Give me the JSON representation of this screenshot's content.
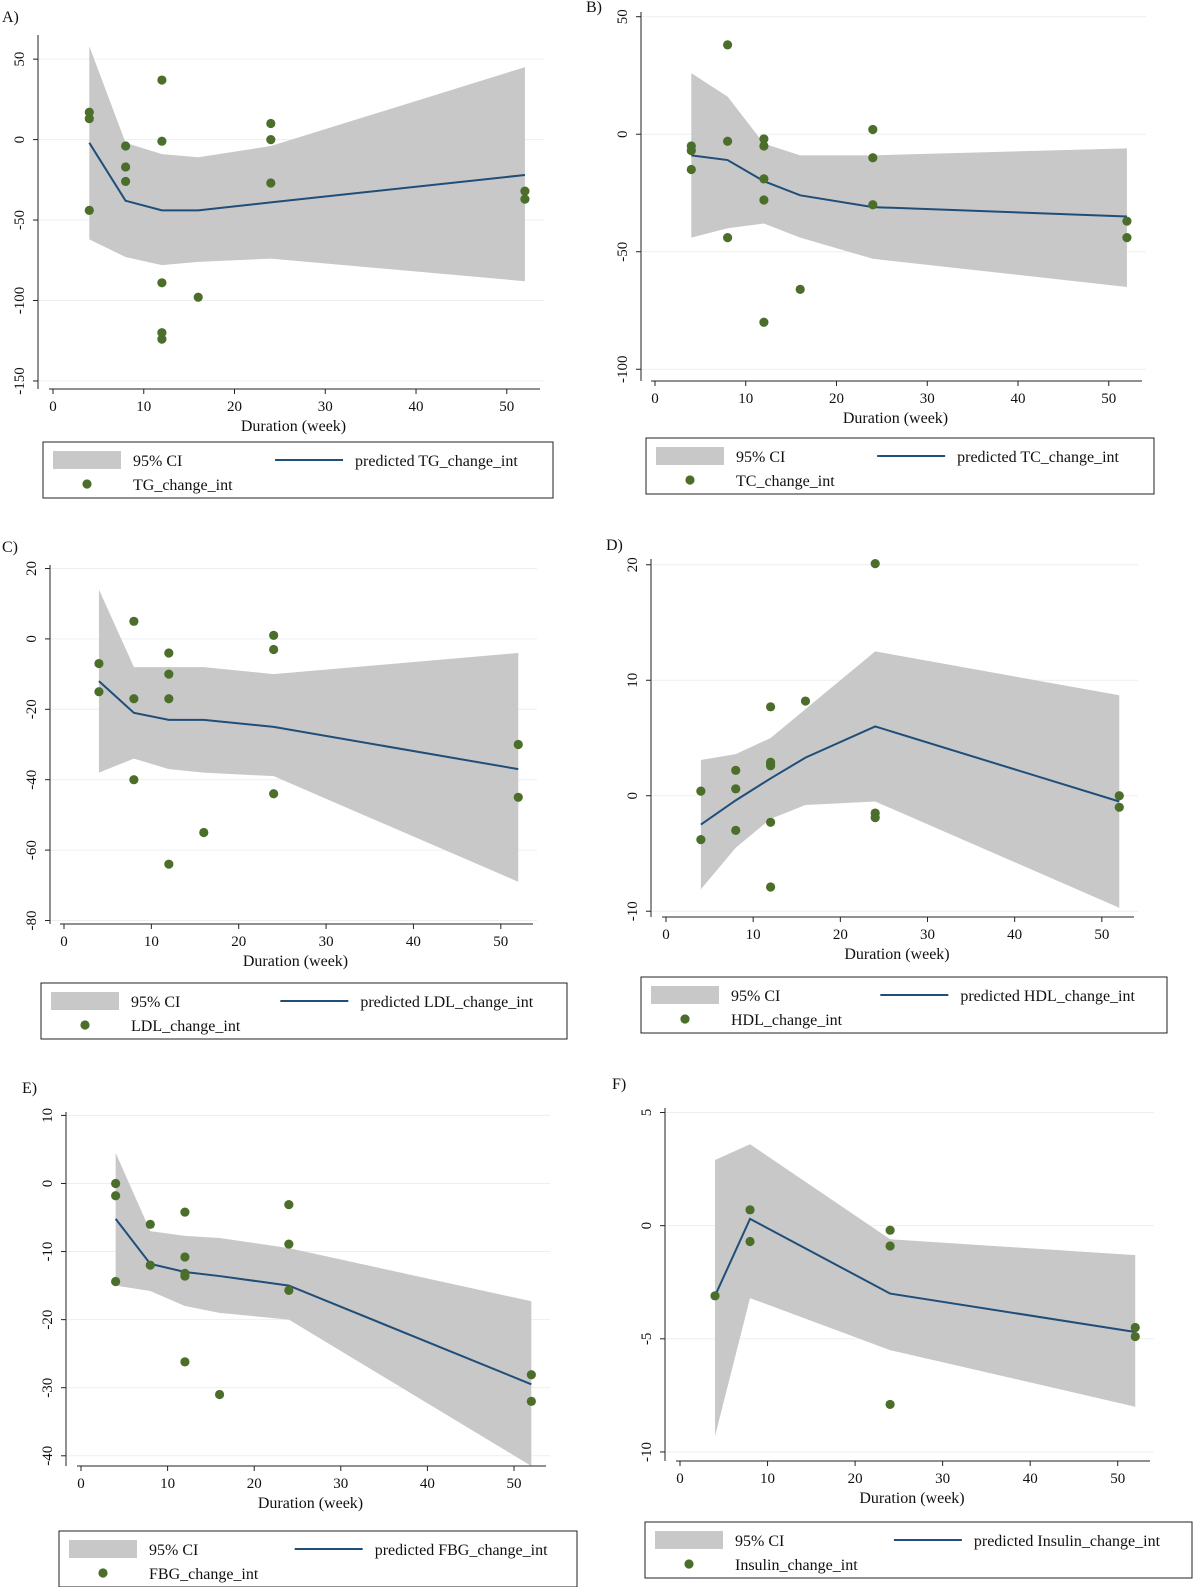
{
  "colors": {
    "band": "#c8c8c8",
    "fit_line": "#1f4e79",
    "points": "#4b6f2a",
    "grid": "#eceff2"
  },
  "chart_data": [
    {
      "panel": "A)",
      "type": "line",
      "xlabel": "Duration (week)",
      "xlim": [
        0,
        53
      ],
      "xticks": [
        0,
        10,
        20,
        30,
        40,
        50
      ],
      "ylim": [
        -155,
        65
      ],
      "yticks": [
        50,
        0,
        -50,
        -100,
        -150
      ],
      "grid": true,
      "legend": {
        "placement": "bottom",
        "ci_label": "95% CI",
        "fit_label": "predicted TG_change_int",
        "points_label": "TG_change_int"
      },
      "ci": {
        "x": [
          4,
          8,
          12,
          16,
          24,
          52
        ],
        "upper": [
          58,
          -2,
          -9,
          -11,
          -4,
          45
        ],
        "lower": [
          -62,
          -73,
          -78,
          -76,
          -74,
          -88
        ]
      },
      "fit": {
        "x": [
          4,
          8,
          12,
          16,
          24,
          52
        ],
        "y": [
          -2,
          -38,
          -44,
          -44,
          -39,
          -22
        ]
      },
      "points": {
        "x": [
          4,
          4,
          4,
          8,
          8,
          8,
          12,
          12,
          12,
          12,
          12,
          16,
          24,
          24,
          24,
          52,
          52
        ],
        "y": [
          17,
          13,
          -44,
          -4,
          -17,
          -26,
          37,
          -1,
          -89,
          -120,
          -124,
          -98,
          10,
          0,
          -27,
          -32,
          -37
        ]
      }
    },
    {
      "panel": "B)",
      "type": "line",
      "xlabel": "Duration (week)",
      "xlim": [
        0,
        53
      ],
      "xticks": [
        0,
        10,
        20,
        30,
        40,
        50
      ],
      "ylim": [
        -105,
        52
      ],
      "yticks": [
        50,
        0,
        -50,
        -100
      ],
      "grid": true,
      "legend": {
        "placement": "bottom",
        "ci_label": "95% CI",
        "fit_label": "predicted TC_change_int",
        "points_label": "TC_change_int"
      },
      "ci": {
        "x": [
          4,
          8,
          12,
          16,
          24,
          52
        ],
        "upper": [
          26,
          16,
          -4,
          -9,
          -9,
          -6
        ],
        "lower": [
          -44,
          -40,
          -38,
          -44,
          -53,
          -65
        ]
      },
      "fit": {
        "x": [
          4,
          8,
          12,
          16,
          24,
          52
        ],
        "y": [
          -9,
          -11,
          -20,
          -26,
          -31,
          -35
        ]
      },
      "points": {
        "x": [
          4,
          4,
          4,
          8,
          8,
          8,
          12,
          12,
          12,
          12,
          12,
          16,
          24,
          24,
          24,
          52,
          52
        ],
        "y": [
          -5,
          -7,
          -15,
          38,
          -3,
          -44,
          -2,
          -5,
          -19,
          -28,
          -80,
          -66,
          2,
          -10,
          -30,
          -37,
          -44
        ]
      }
    },
    {
      "panel": "C)",
      "type": "line",
      "xlabel": "Duration (week)",
      "xlim": [
        0,
        53
      ],
      "xticks": [
        0,
        10,
        20,
        30,
        40,
        50
      ],
      "ylim": [
        -81,
        21
      ],
      "yticks": [
        20,
        0,
        -20,
        -40,
        -60,
        -80
      ],
      "grid": true,
      "legend": {
        "placement": "bottom",
        "ci_label": "95% CI",
        "fit_label": "predicted LDL_change_int",
        "points_label": "LDL_change_int"
      },
      "ci": {
        "x": [
          4,
          8,
          12,
          16,
          24,
          52
        ],
        "upper": [
          14,
          -8,
          -8,
          -8,
          -10,
          -4
        ],
        "lower": [
          -38,
          -34,
          -37,
          -38,
          -39,
          -69
        ]
      },
      "fit": {
        "x": [
          4,
          8,
          12,
          16,
          24,
          52
        ],
        "y": [
          -12,
          -21,
          -23,
          -23,
          -25,
          -37
        ]
      },
      "points": {
        "x": [
          4,
          4,
          8,
          8,
          8,
          12,
          12,
          12,
          12,
          16,
          24,
          24,
          24,
          52,
          52
        ],
        "y": [
          -7,
          -15,
          5,
          -17,
          -40,
          -4,
          -10,
          -17,
          -64,
          -55,
          1,
          -3,
          -44,
          -30,
          -45
        ]
      }
    },
    {
      "panel": "D)",
      "type": "line",
      "xlabel": "Duration (week)",
      "xlim": [
        0,
        53
      ],
      "xticks": [
        0,
        10,
        20,
        30,
        40,
        50
      ],
      "ylim": [
        -10.5,
        20.5
      ],
      "yticks": [
        20,
        10,
        0,
        -10
      ],
      "grid": true,
      "legend": {
        "placement": "bottom",
        "ci_label": "95% CI",
        "fit_label": "predicted HDL_change_int",
        "points_label": "HDL_change_int"
      },
      "ci": {
        "x": [
          4,
          8,
          12,
          16,
          24,
          52
        ],
        "upper": [
          3.1,
          3.6,
          5.0,
          7.5,
          12.5,
          8.7
        ],
        "lower": [
          -8.1,
          -4.5,
          -2.0,
          -0.8,
          -0.5,
          -9.7
        ]
      },
      "fit": {
        "x": [
          4,
          8,
          12,
          16,
          24,
          52
        ],
        "y": [
          -2.5,
          -0.4,
          1.5,
          3.3,
          6.0,
          -0.5
        ]
      },
      "points": {
        "x": [
          4,
          4,
          8,
          8,
          8,
          12,
          12,
          12,
          12,
          12,
          12,
          16,
          24,
          24,
          24,
          52,
          52
        ],
        "y": [
          0.4,
          -3.8,
          2.2,
          0.6,
          -3.0,
          7.7,
          2.9,
          2.6,
          -2.3,
          -7.9,
          2.7,
          8.2,
          20.1,
          -1.5,
          -1.9,
          0.0,
          -1.0
        ]
      }
    },
    {
      "panel": "E)",
      "type": "line",
      "xlabel": "Duration (week)",
      "xlim": [
        0,
        53
      ],
      "xticks": [
        0,
        10,
        20,
        30,
        40,
        50
      ],
      "ylim": [
        -41.5,
        10.5
      ],
      "yticks": [
        10,
        0,
        -10,
        -20,
        -30,
        -40
      ],
      "grid": true,
      "legend": {
        "placement": "bottom",
        "ci_label": "95% CI",
        "fit_label": "predicted FBG_change_int",
        "points_label": "FBG_change_int"
      },
      "ci": {
        "x": [
          4,
          8,
          12,
          16,
          24,
          52
        ],
        "upper": [
          4.5,
          -7,
          -7.7,
          -8,
          -9.5,
          -17.3
        ],
        "lower": [
          -15,
          -15.8,
          -18,
          -19,
          -20,
          -41.5
        ]
      },
      "fit": {
        "x": [
          4,
          8,
          12,
          16,
          24,
          52
        ],
        "y": [
          -5.2,
          -11.8,
          -13,
          -13.6,
          -15,
          -29.5
        ]
      },
      "points": {
        "x": [
          4,
          4,
          4,
          8,
          8,
          12,
          12,
          12,
          12,
          12,
          16,
          24,
          24,
          24,
          52,
          52
        ],
        "y": [
          0,
          -1.8,
          -14.4,
          -6,
          -12,
          -4.2,
          -10.8,
          -13.2,
          -13.6,
          -26.2,
          -31,
          -3.1,
          -8.9,
          -15.7,
          -28.1,
          -32
        ]
      }
    },
    {
      "panel": "F)",
      "type": "line",
      "xlabel": "Duration (week)",
      "xlim": [
        0,
        53
      ],
      "xticks": [
        0,
        10,
        20,
        30,
        40,
        50
      ],
      "ylim": [
        -10.4,
        5.2
      ],
      "yticks": [
        5,
        0,
        -5,
        -10
      ],
      "grid": true,
      "legend": {
        "placement": "bottom",
        "ci_label": "95% CI",
        "fit_label": "predicted Insulin_change_int",
        "points_label": "Insulin_change_int"
      },
      "ci": {
        "x": [
          4,
          8,
          24,
          52
        ],
        "upper": [
          2.9,
          3.6,
          -0.6,
          -1.3
        ],
        "lower": [
          -9.3,
          -3.2,
          -5.5,
          -8.0
        ]
      },
      "fit": {
        "x": [
          4,
          8,
          24,
          52
        ],
        "y": [
          -3.1,
          0.3,
          -3.0,
          -4.7
        ]
      },
      "points": {
        "x": [
          4,
          8,
          8,
          24,
          24,
          24,
          52,
          52
        ],
        "y": [
          -3.1,
          0.7,
          -0.7,
          -0.2,
          -0.9,
          -7.9,
          -4.5,
          -4.9
        ]
      }
    }
  ]
}
